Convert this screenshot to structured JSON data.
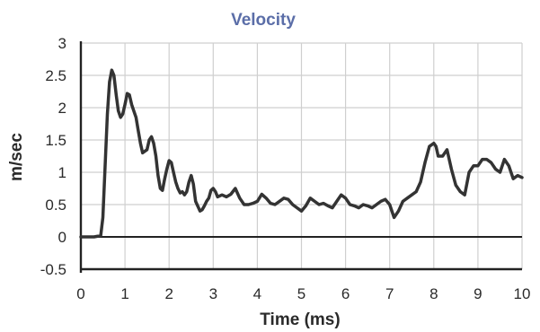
{
  "chart_data": {
    "type": "line",
    "title": "Velocity",
    "xlabel": "Time (ms)",
    "ylabel": "m/sec",
    "xlim": [
      0,
      10
    ],
    "ylim": [
      -0.5,
      3
    ],
    "xticks": [
      0,
      1,
      2,
      3,
      4,
      5,
      6,
      7,
      8,
      9,
      10
    ],
    "yticks": [
      -0.5,
      0,
      0.5,
      1,
      1.5,
      2,
      2.5,
      3
    ],
    "xtick_labels": [
      "0",
      "1",
      "2",
      "3",
      "4",
      "5",
      "6",
      "7",
      "8",
      "9",
      "10"
    ],
    "ytick_labels": [
      "-0.5",
      "0",
      "0.5",
      "1",
      "1.5",
      "2",
      "2.5",
      "3"
    ],
    "grid": true,
    "colors": {
      "title": "#5b6ea8",
      "series": "#333333",
      "grid": "#cfcfcf",
      "axis": "#222222"
    },
    "series": [
      {
        "x": [
          0,
          0.3,
          0.45,
          0.5,
          0.55,
          0.6,
          0.65,
          0.7,
          0.75,
          0.8,
          0.85,
          0.9,
          0.95,
          1.0,
          1.05,
          1.1,
          1.15,
          1.2,
          1.25,
          1.3,
          1.35,
          1.4,
          1.5,
          1.55,
          1.6,
          1.65,
          1.7,
          1.75,
          1.8,
          1.85,
          1.9,
          1.95,
          2.0,
          2.05,
          2.1,
          2.15,
          2.2,
          2.25,
          2.3,
          2.35,
          2.4,
          2.45,
          2.5,
          2.55,
          2.6,
          2.7,
          2.75,
          2.8,
          2.85,
          2.9,
          2.95,
          3.0,
          3.05,
          3.1,
          3.2,
          3.3,
          3.4,
          3.5,
          3.6,
          3.7,
          3.8,
          3.9,
          4.0,
          4.1,
          4.2,
          4.3,
          4.4,
          4.5,
          4.6,
          4.7,
          4.8,
          4.9,
          5.0,
          5.1,
          5.2,
          5.3,
          5.4,
          5.5,
          5.6,
          5.7,
          5.8,
          5.9,
          6.0,
          6.1,
          6.2,
          6.3,
          6.4,
          6.5,
          6.6,
          6.7,
          6.8,
          6.9,
          7.0,
          7.1,
          7.2,
          7.3,
          7.4,
          7.5,
          7.6,
          7.7,
          7.8,
          7.9,
          8.0,
          8.05,
          8.1,
          8.2,
          8.3,
          8.4,
          8.5,
          8.6,
          8.7,
          8.8,
          8.9,
          9.0,
          9.1,
          9.2,
          9.3,
          9.4,
          9.5,
          9.6,
          9.7,
          9.8,
          9.9,
          10.0
        ],
        "y": [
          0,
          0,
          0.02,
          0.3,
          1.1,
          1.9,
          2.4,
          2.58,
          2.5,
          2.2,
          1.95,
          1.85,
          1.9,
          2.05,
          2.22,
          2.2,
          2.05,
          1.95,
          1.85,
          1.65,
          1.45,
          1.3,
          1.35,
          1.5,
          1.55,
          1.45,
          1.25,
          0.95,
          0.75,
          0.72,
          0.9,
          1.05,
          1.18,
          1.15,
          1.0,
          0.85,
          0.75,
          0.68,
          0.7,
          0.65,
          0.7,
          0.85,
          0.95,
          0.82,
          0.55,
          0.4,
          0.42,
          0.48,
          0.55,
          0.6,
          0.72,
          0.75,
          0.7,
          0.62,
          0.65,
          0.62,
          0.66,
          0.75,
          0.6,
          0.5,
          0.5,
          0.52,
          0.55,
          0.66,
          0.6,
          0.52,
          0.5,
          0.55,
          0.6,
          0.58,
          0.5,
          0.45,
          0.4,
          0.48,
          0.6,
          0.55,
          0.5,
          0.52,
          0.48,
          0.45,
          0.55,
          0.65,
          0.6,
          0.5,
          0.48,
          0.45,
          0.5,
          0.48,
          0.45,
          0.5,
          0.55,
          0.58,
          0.5,
          0.3,
          0.4,
          0.55,
          0.6,
          0.65,
          0.7,
          0.85,
          1.15,
          1.4,
          1.45,
          1.4,
          1.25,
          1.25,
          1.35,
          1.05,
          0.8,
          0.7,
          0.65,
          1.0,
          1.1,
          1.1,
          1.2,
          1.2,
          1.15,
          1.05,
          1.0,
          1.2,
          1.1,
          0.9,
          0.95,
          0.92
        ]
      }
    ]
  }
}
